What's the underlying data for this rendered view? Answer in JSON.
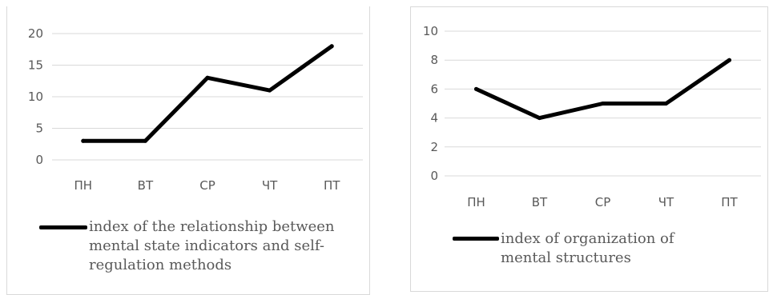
{
  "chart_data": [
    {
      "type": "line",
      "categories": [
        "ПН",
        "ВТ",
        "СР",
        "ЧТ",
        "ПТ"
      ],
      "series": [
        {
          "name": "index of the relationship between mental state indicators and self-regulation methods",
          "values": [
            3,
            3,
            13,
            11,
            18
          ]
        }
      ],
      "yticks": [
        "0",
        "5",
        "10",
        "15",
        "20"
      ],
      "ylim": [
        0,
        20
      ],
      "grid": true,
      "legend_position": "bottom",
      "line_color": "#000000",
      "grid_color": "#d9d9d9"
    },
    {
      "type": "line",
      "categories": [
        "ПН",
        "ВТ",
        "СР",
        "ЧТ",
        "ПТ"
      ],
      "series": [
        {
          "name": "index of organization of mental structures",
          "values": [
            6,
            4,
            5,
            5,
            8
          ]
        }
      ],
      "yticks": [
        "0",
        "2",
        "4",
        "6",
        "8",
        "10"
      ],
      "ylim": [
        0,
        10
      ],
      "grid": true,
      "legend_position": "bottom",
      "line_color": "#000000",
      "grid_color": "#d9d9d9"
    }
  ]
}
